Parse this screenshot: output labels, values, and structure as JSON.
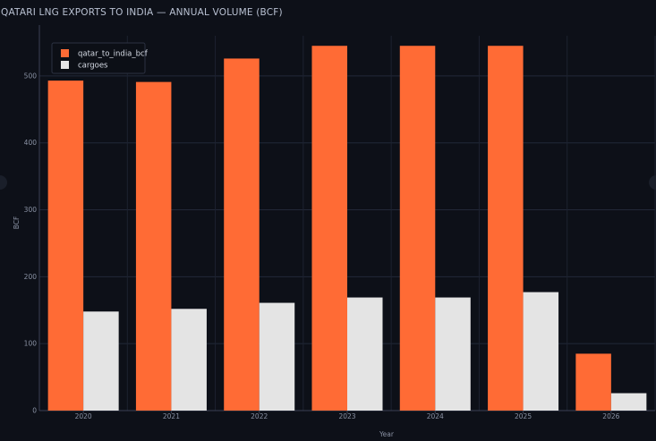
{
  "chart_data": {
    "type": "bar",
    "title": "QATARI LNG EXPORTS TO INDIA — ANNUAL VOLUME (BCF)",
    "xlabel": "Year",
    "ylabel": "BCF",
    "categories": [
      "2020",
      "2021",
      "2022",
      "2023",
      "2024",
      "2025",
      "2026"
    ],
    "series": [
      {
        "name": "qatar_to_india_bcf",
        "color": "#ff6b35",
        "values": [
          493,
          491,
          526,
          545,
          545,
          545,
          85
        ]
      },
      {
        "name": "cargoes",
        "color": "#e4e4e4",
        "values": [
          148,
          152,
          161,
          169,
          169,
          177,
          26
        ]
      }
    ],
    "ylim": [
      0,
      560
    ],
    "yticks": [
      0,
      100,
      200,
      300,
      400,
      500
    ],
    "grid": true,
    "legend_position": "top-left"
  }
}
